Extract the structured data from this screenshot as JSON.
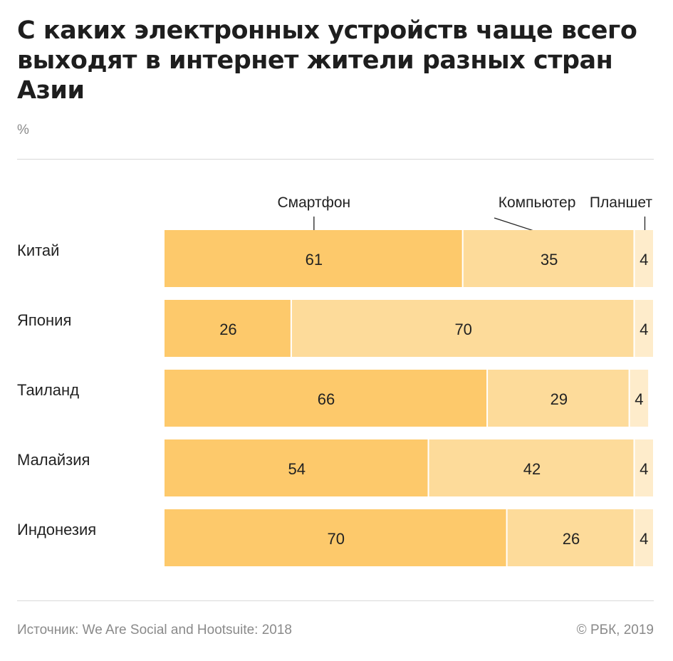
{
  "title": "С каких электронных устройств чаще всего выходят в интернет жители разных стран Азии",
  "unit": "%",
  "footer": {
    "source": "Источник: We Are Social and Hootsuite: 2018",
    "copyright": "© РБК, 2019"
  },
  "colors": {
    "smartphone": "#fdc96b",
    "computer": "#fddb9a",
    "tablet": "#feeccb"
  },
  "chart_data": {
    "type": "bar",
    "stacked": true,
    "orientation": "horizontal",
    "categories": [
      "Китай",
      "Япония",
      "Таиланд",
      "Малайзия",
      "Индонезия"
    ],
    "series": [
      {
        "name": "Смартфон",
        "values": [
          61,
          26,
          66,
          54,
          70
        ]
      },
      {
        "name": "Компьютер",
        "values": [
          35,
          70,
          29,
          42,
          26
        ]
      },
      {
        "name": "Планшет",
        "values": [
          4,
          4,
          4,
          4,
          4
        ]
      }
    ],
    "xlim": [
      0,
      100
    ],
    "legend": "top"
  }
}
